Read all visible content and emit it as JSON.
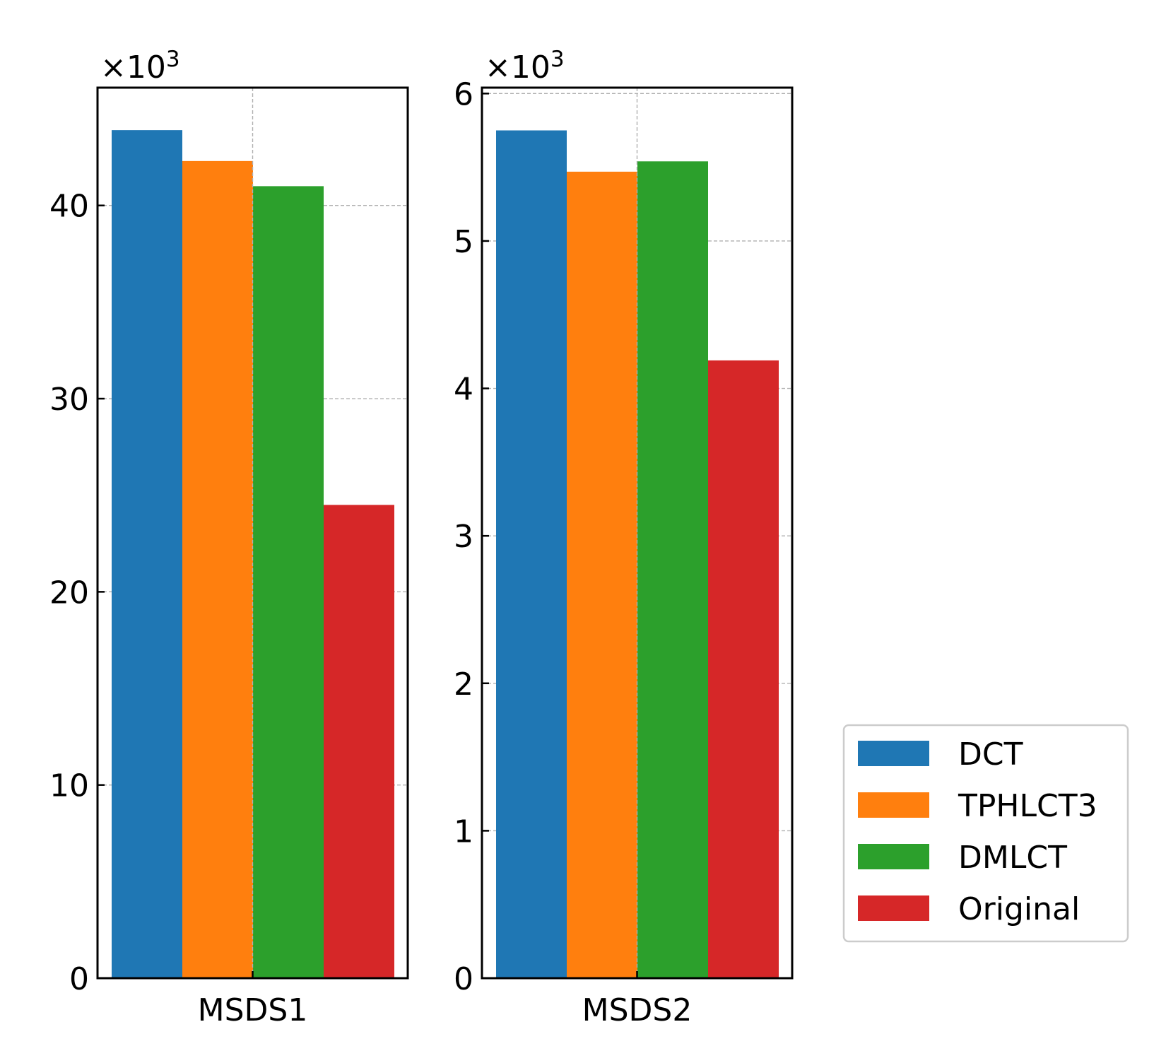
{
  "chart_data": [
    {
      "type": "bar",
      "categories": [
        "MSDS1"
      ],
      "series": [
        {
          "name": "DCT",
          "values": [
            43.9
          ]
        },
        {
          "name": "TPHLCT3",
          "values": [
            42.3
          ]
        },
        {
          "name": "DMLCT",
          "values": [
            41.0
          ]
        },
        {
          "name": "Original",
          "values": [
            24.5
          ]
        }
      ],
      "title": "",
      "xlabel": "",
      "ylabel": "",
      "y_tick_labels": [
        "0",
        "10",
        "20",
        "30",
        "40"
      ],
      "y_ticks": [
        0,
        10,
        20,
        30,
        40
      ],
      "ylim": [
        0,
        46.1
      ],
      "scale_label": {
        "prefix": "×10",
        "exponent": "3"
      },
      "grid": true
    },
    {
      "type": "bar",
      "categories": [
        "MSDS2"
      ],
      "series": [
        {
          "name": "DCT",
          "values": [
            5.75
          ]
        },
        {
          "name": "TPHLCT3",
          "values": [
            5.47
          ]
        },
        {
          "name": "DMLCT",
          "values": [
            5.54
          ]
        },
        {
          "name": "Original",
          "values": [
            4.19
          ]
        }
      ],
      "title": "",
      "xlabel": "",
      "ylabel": "",
      "y_tick_labels": [
        "0",
        "1",
        "2",
        "3",
        "4",
        "5",
        "6"
      ],
      "y_ticks": [
        0,
        1,
        2,
        3,
        4,
        5,
        6
      ],
      "ylim": [
        0,
        6.04
      ],
      "scale_label": {
        "prefix": "×10",
        "exponent": "3"
      },
      "grid": true
    }
  ],
  "legend": {
    "placement": "right",
    "entries": [
      "DCT",
      "TPHLCT3",
      "DMLCT",
      "Original"
    ]
  },
  "colors": {
    "DCT": "#1f77b4",
    "TPHLCT3": "#ff7f0e",
    "DMLCT": "#2ca02c",
    "Original": "#d62728"
  }
}
